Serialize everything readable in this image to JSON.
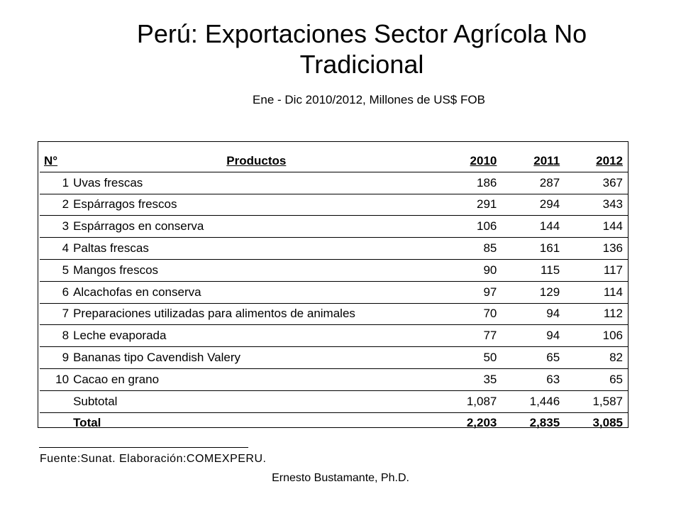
{
  "title": "Perú: Exportaciones Sector Agrícola No Tradicional",
  "subtitle": "Ene - Dic 2010/2012,  Millones de US$ FOB",
  "table": {
    "headers": {
      "num": "N°",
      "product": "Productos",
      "y2010": "2010",
      "y2011": "2011",
      "y2012": "2012"
    },
    "rows": [
      {
        "num": "1",
        "product": "Uvas frescas",
        "y2010": "186",
        "y2011": "287",
        "y2012": "367"
      },
      {
        "num": "2",
        "product": "Espárragos frescos",
        "y2010": "291",
        "y2011": "294",
        "y2012": "343"
      },
      {
        "num": "3",
        "product": "Espárragos en conserva",
        "y2010": "106",
        "y2011": "144",
        "y2012": "144"
      },
      {
        "num": "4",
        "product": "Paltas frescas",
        "y2010": "85",
        "y2011": "161",
        "y2012": "136"
      },
      {
        "num": "5",
        "product": "Mangos frescos",
        "y2010": "90",
        "y2011": "115",
        "y2012": "117"
      },
      {
        "num": "6",
        "product": "Alcachofas en conserva",
        "y2010": "97",
        "y2011": "129",
        "y2012": "114"
      },
      {
        "num": "7",
        "product": "Preparaciones utilizadas para alimentos de animales",
        "y2010": "70",
        "y2011": "94",
        "y2012": "112"
      },
      {
        "num": "8",
        "product": "Leche evaporada",
        "y2010": "77",
        "y2011": "94",
        "y2012": "106"
      },
      {
        "num": "9",
        "product": "Bananas tipo Cavendish Valery",
        "y2010": "50",
        "y2011": "65",
        "y2012": "82"
      },
      {
        "num": "10",
        "product": "Cacao en grano",
        "y2010": "35",
        "y2011": "63",
        "y2012": "65"
      }
    ],
    "subtotal": {
      "label": "Subtotal",
      "y2010": "1,087",
      "y2011": "1,446",
      "y2012": "1,587"
    },
    "total": {
      "label": "Total",
      "y2010": "2,203",
      "y2011": "2,835",
      "y2012": "3,085"
    }
  },
  "source": "Fuente:Sunat. Elaboración:COMEXPERU.",
  "author": "Ernesto Bustamante, Ph.D."
}
